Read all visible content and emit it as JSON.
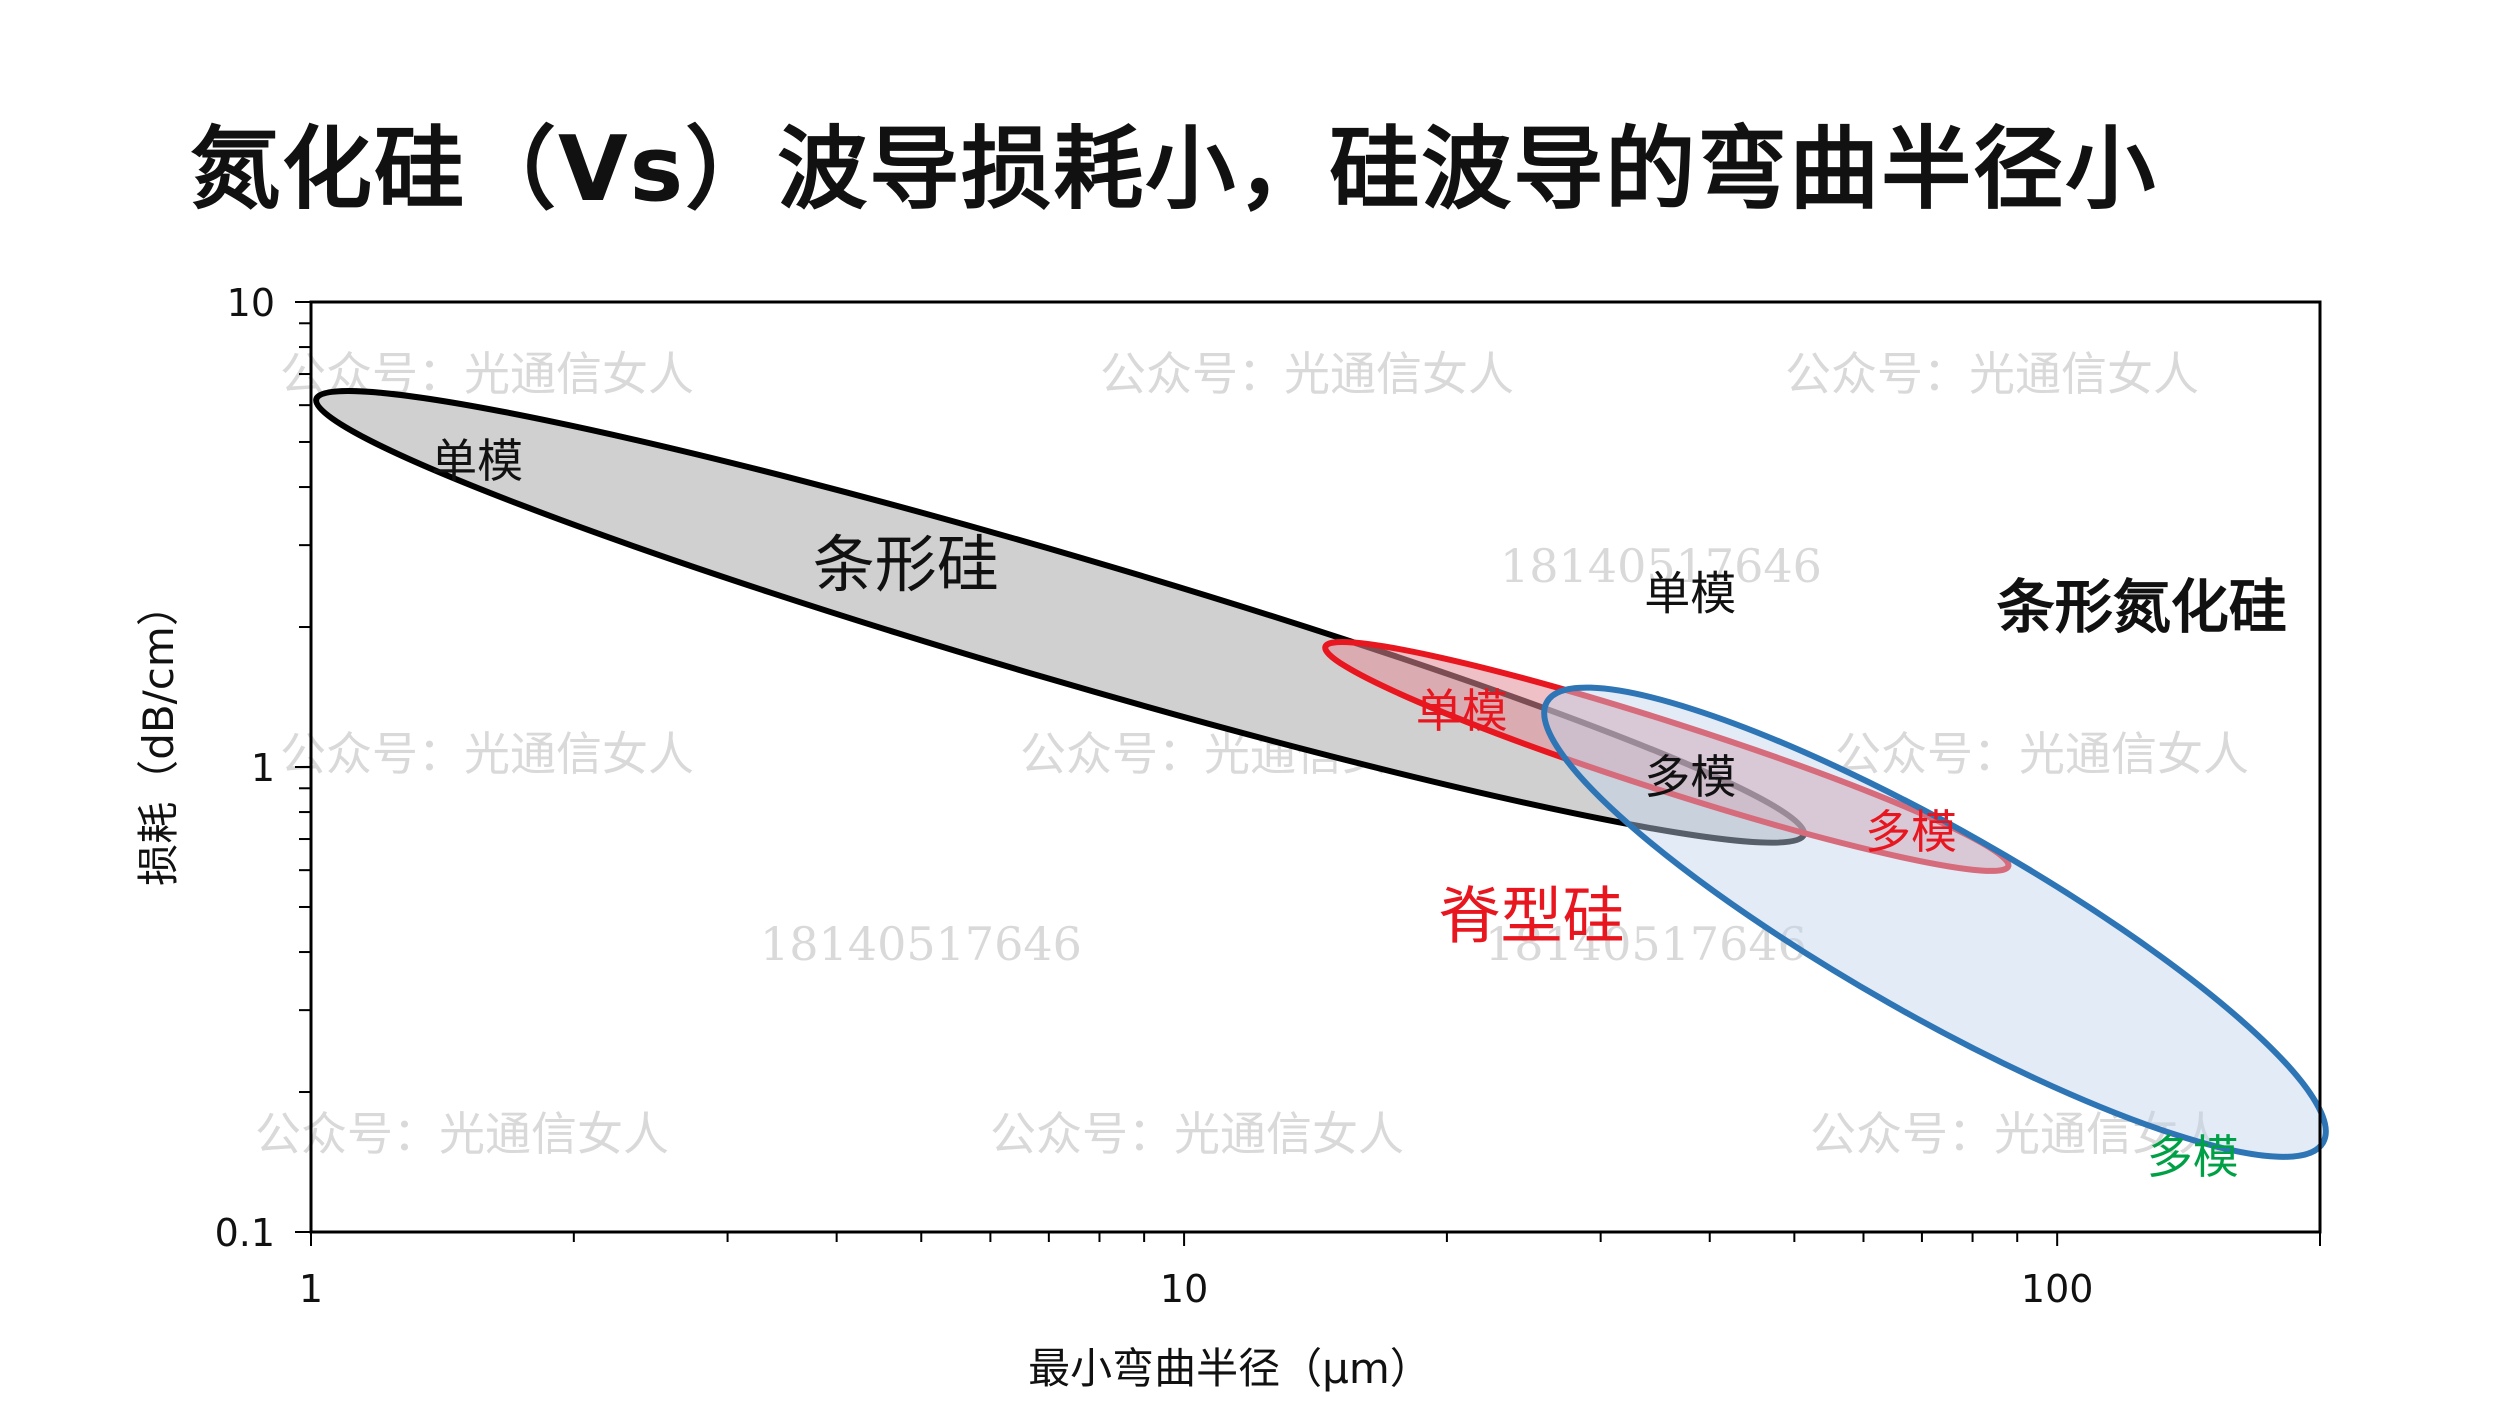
{
  "page": {
    "title": "氮化硅（Vs）波导损耗小，硅波导的弯曲半径小"
  },
  "chart_data": {
    "type": "scatter",
    "x_scale": "log",
    "y_scale": "log",
    "xlim": [
      1,
      200
    ],
    "ylim": [
      0.1,
      10
    ],
    "xlabel": "最小弯曲半径（μm）",
    "ylabel": "损耗（dB/cm）",
    "x_ticks": [
      {
        "value": 1,
        "label": "1"
      },
      {
        "value": 10,
        "label": "10"
      },
      {
        "value": 100,
        "label": "100"
      }
    ],
    "y_ticks": [
      {
        "value": 0.1,
        "label": "0.1"
      },
      {
        "value": 1,
        "label": "1"
      },
      {
        "value": 10,
        "label": "10"
      }
    ],
    "grid": false,
    "legend": "none",
    "regions": [
      {
        "name": "条形硅",
        "shape": "ellipse",
        "extent_x": [
          1.0,
          52
        ],
        "extent_y": [
          0.75,
          5.9
        ],
        "fill": "#d0d0d0",
        "stroke": "#000000",
        "name_color": "#111111",
        "name_bold": false,
        "name_at": [
          4.8,
          2.45
        ],
        "mode_labels": [
          {
            "text": "单模",
            "x": 1.55,
            "y": 4.2,
            "color": "#111111"
          },
          {
            "text": "多模",
            "x": 38,
            "y": 0.88,
            "color": "#111111"
          }
        ]
      },
      {
        "name": "脊型硅",
        "shape": "ellipse",
        "extent_x": [
          14.5,
          88
        ],
        "extent_y": [
          0.6,
          1.85
        ],
        "fill": "rgba(225,140,150,0.55)",
        "stroke": "#e8161f",
        "name_color": "#e8161f",
        "name_bold": false,
        "name_at": [
          25,
          0.43
        ],
        "mode_labels": [
          {
            "text": "单模",
            "x": 20.8,
            "y": 1.22,
            "color": "#e8161f"
          },
          {
            "text": "多模",
            "x": 68,
            "y": 0.67,
            "color": "#e8161f"
          }
        ]
      },
      {
        "name": "条形氮化硅",
        "shape": "ellipse",
        "extent_x": [
          30,
          175
        ],
        "extent_y": [
          0.1,
          2.15
        ],
        "fill": "rgba(190,210,235,0.45)",
        "stroke": "#2e75b6",
        "name_color": "#111111",
        "name_bold": true,
        "name_at": [
          125,
          2.0
        ],
        "mode_labels": [
          {
            "text": "单模",
            "x": 38,
            "y": 2.18,
            "color": "#111111"
          },
          {
            "text": "多模",
            "x": 143,
            "y": 0.134,
            "color": "#00a046"
          }
        ]
      }
    ]
  },
  "watermarks": {
    "brand": "公众号：光通信女人",
    "phone": "18140517646"
  }
}
